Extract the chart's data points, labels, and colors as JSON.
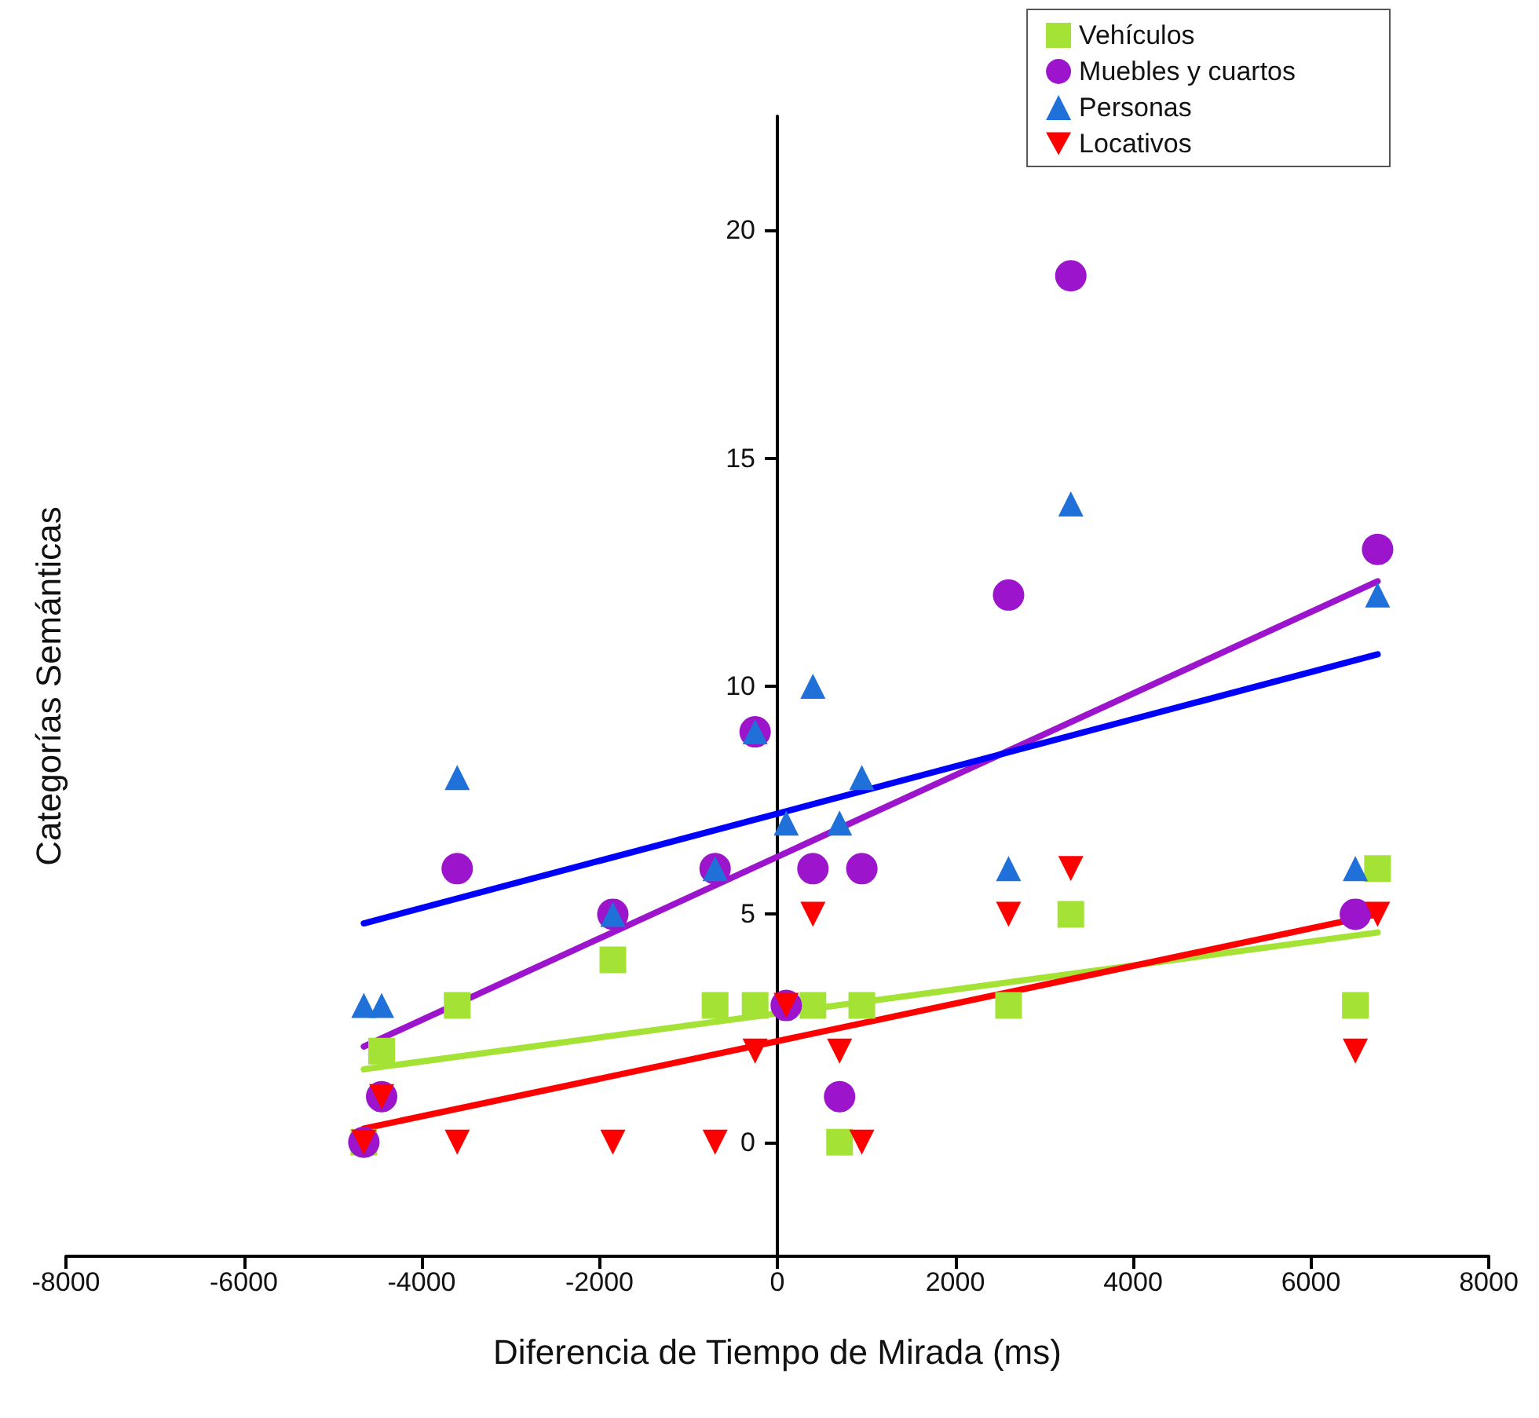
{
  "chart_data": {
    "type": "scatter",
    "xlabel": "Diferencia de Tiempo de Mirada (ms)",
    "ylabel": "Categorías Semánticas",
    "x": [
      -4650,
      -4450,
      -3600,
      -1850,
      -700,
      -250,
      100,
      400,
      700,
      950,
      2600,
      3300,
      6500,
      6750
    ],
    "series": [
      {
        "name": "Vehículos",
        "color": "#a4e335",
        "marker": "square",
        "values": [
          0,
          2,
          3,
          4,
          3,
          3,
          null,
          3,
          0,
          3,
          3,
          5,
          3,
          6
        ]
      },
      {
        "name": "Muebles y cuartos",
        "color": "#9c14cc",
        "marker": "circle",
        "values": [
          0,
          1,
          6,
          5,
          6,
          9,
          3,
          6,
          1,
          6,
          12,
          19,
          5,
          13
        ]
      },
      {
        "name": "Personas",
        "color": "#1f70d8",
        "marker": "triangle",
        "values": [
          3,
          3,
          8,
          5,
          6,
          9,
          7,
          10,
          7,
          8,
          6,
          14,
          6,
          12
        ]
      },
      {
        "name": "Locativos",
        "color": "#fe0000",
        "marker": "triangle-down",
        "values": [
          0,
          1,
          0,
          0,
          0,
          2,
          3,
          5,
          2,
          0,
          5,
          6,
          2,
          5
        ]
      },
      {
        "type": "line",
        "color": "#a4e335",
        "values": [
          1.6,
          null,
          null,
          null,
          null,
          null,
          null,
          null,
          null,
          null,
          null,
          null,
          null,
          4.6
        ]
      },
      {
        "type": "line",
        "color": "#9c14cc",
        "values": [
          2.1,
          null,
          null,
          null,
          null,
          null,
          null,
          null,
          null,
          null,
          null,
          null,
          null,
          12.3
        ]
      },
      {
        "type": "line",
        "color": "#0000ff",
        "values": [
          4.8,
          null,
          null,
          null,
          null,
          null,
          null,
          null,
          null,
          null,
          null,
          null,
          null,
          10.7
        ]
      },
      {
        "type": "line",
        "color": "#fe0000",
        "values": [
          0.3,
          null,
          null,
          null,
          null,
          null,
          null,
          null,
          null,
          null,
          null,
          null,
          null,
          5.0
        ]
      }
    ],
    "xlim": [
      -8000,
      8000
    ],
    "xticks": [
      -8000,
      -6000,
      -4000,
      -2000,
      0,
      2000,
      4000,
      6000,
      8000
    ],
    "ylim": [
      -2.5,
      22.5
    ],
    "yticks": [
      0,
      5,
      10,
      15,
      20
    ],
    "grid": false,
    "legend": "top right"
  }
}
